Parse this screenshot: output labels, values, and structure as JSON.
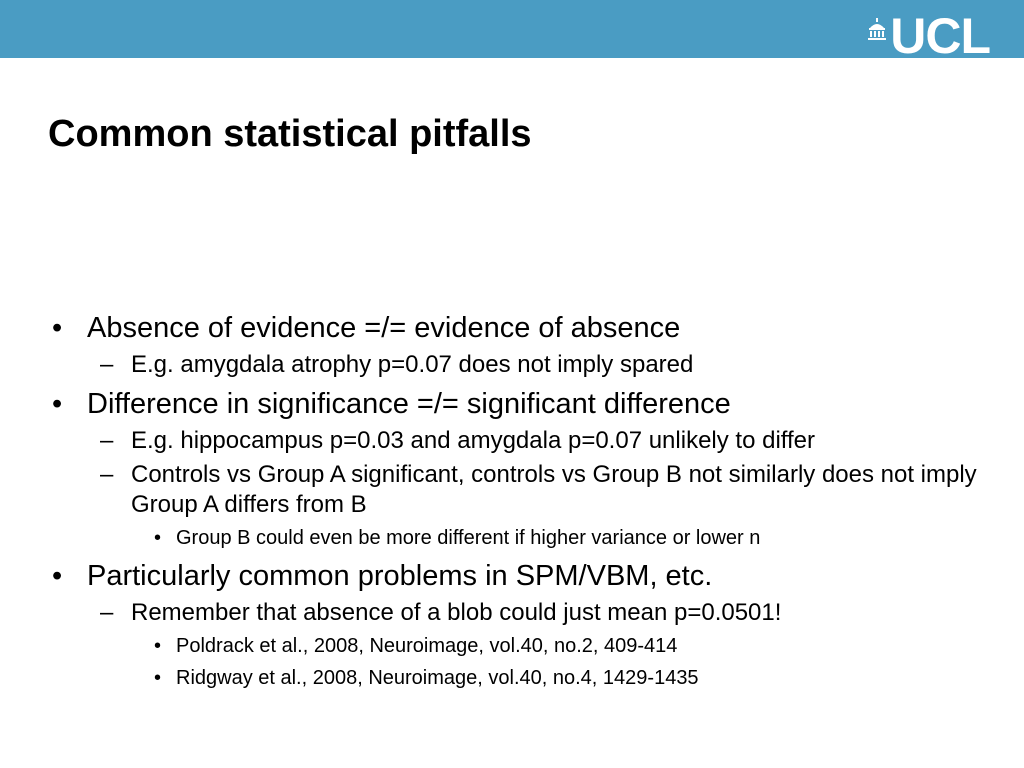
{
  "header": {
    "logo_text": "UCL"
  },
  "colors": {
    "header_bar": "#4a9cc3",
    "logo": "#ffffff"
  },
  "slide": {
    "title": "Common statistical pitfalls",
    "items": [
      {
        "text": "Absence of evidence =/= evidence of absence",
        "children": [
          {
            "text": "E.g. amygdala atrophy p=0.07 does not imply spared",
            "children": []
          }
        ]
      },
      {
        "text": "Difference in significance =/= significant difference",
        "children": [
          {
            "text": "E.g. hippocampus p=0.03 and amygdala p=0.07 unlikely to differ",
            "children": []
          },
          {
            "text": "Controls vs Group A significant, controls vs Group B not similarly does not imply Group A differs from B",
            "children": [
              {
                "text": "Group B could even be more different if higher variance or lower n"
              }
            ]
          }
        ]
      },
      {
        "text": "Particularly common problems in SPM/VBM, etc.",
        "children": [
          {
            "text": "Remember that absence of a blob could just mean p=0.0501!",
            "children": [
              {
                "text": "Poldrack et al., 2008, Neuroimage, vol.40, no.2, 409-414"
              },
              {
                "text": "Ridgway et al., 2008, Neuroimage, vol.40, no.4, 1429-1435"
              }
            ]
          }
        ]
      }
    ]
  }
}
